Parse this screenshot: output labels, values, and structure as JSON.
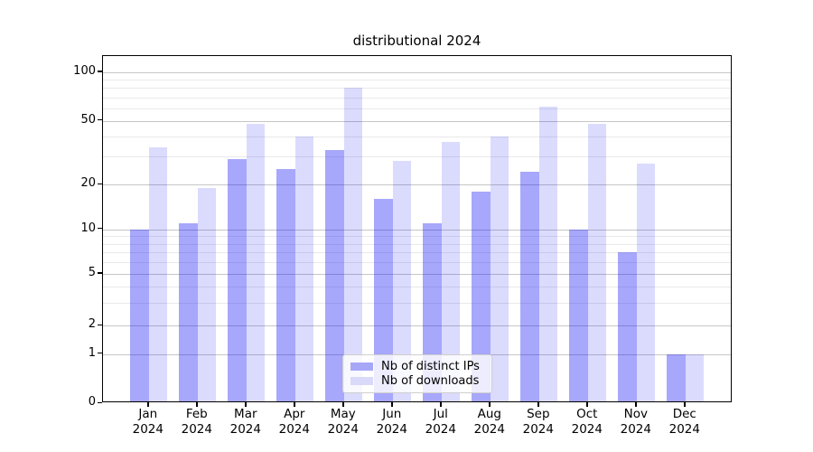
{
  "chart_data": {
    "type": "bar",
    "title": "distributional 2024",
    "categories": [
      "Jan",
      "Feb",
      "Mar",
      "Apr",
      "May",
      "Jun",
      "Jul",
      "Aug",
      "Sep",
      "Oct",
      "Nov",
      "Dec"
    ],
    "x_tick_second_line": "2024",
    "series": [
      {
        "name": "Nb of distinct IPs",
        "color": "#a7a7f8",
        "fill_rgba": "rgba(10,10,245,0.36)",
        "values": [
          10,
          11,
          29,
          25,
          33,
          16,
          11,
          18,
          24,
          10,
          7,
          1
        ]
      },
      {
        "name": "Nb of downloads",
        "color": "#d9d9fa",
        "fill_rgba": "rgba(10,10,245,0.145)",
        "values": [
          34,
          19,
          48,
          40,
          80,
          28,
          37,
          40,
          61,
          48,
          27,
          1
        ]
      }
    ],
    "yscale": "symlog",
    "yticks": [
      0,
      1,
      2,
      5,
      10,
      20,
      50,
      100
    ],
    "minor_yticks": [
      3,
      4,
      6,
      7,
      8,
      9,
      30,
      40,
      60,
      70,
      80,
      90
    ],
    "grid": true,
    "legend_position": "lower center"
  }
}
